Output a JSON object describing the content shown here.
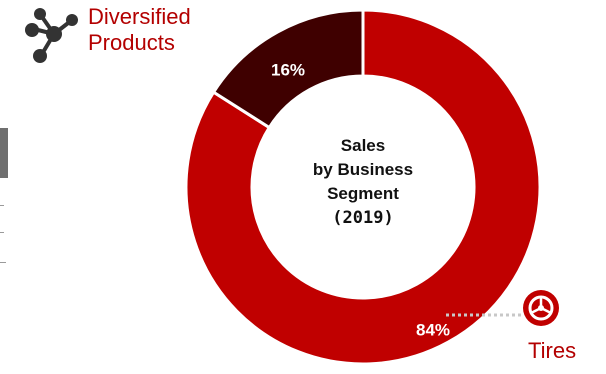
{
  "chart_data": {
    "type": "pie",
    "style": "donut",
    "title_lines": [
      "Sales",
      "by Business",
      "Segment",
      "(2019)"
    ],
    "slices": [
      {
        "name": "Tires",
        "value": 84,
        "label": "84%",
        "color": "#c00000"
      },
      {
        "name": "Diversified Products",
        "value": 16,
        "label": "16%",
        "color": "#3f0000"
      }
    ]
  },
  "labels": {
    "diversified_line1": "Diversified",
    "diversified_line2": "Products",
    "tires": "Tires"
  },
  "icons": {
    "diversified": "network-nodes-icon",
    "tires": "tire-wheel-icon"
  },
  "colors": {
    "accent": "#b30000",
    "tires_slice": "#c00000",
    "diversified_slice": "#3f0000",
    "leader_line": "#c8c8c8"
  }
}
